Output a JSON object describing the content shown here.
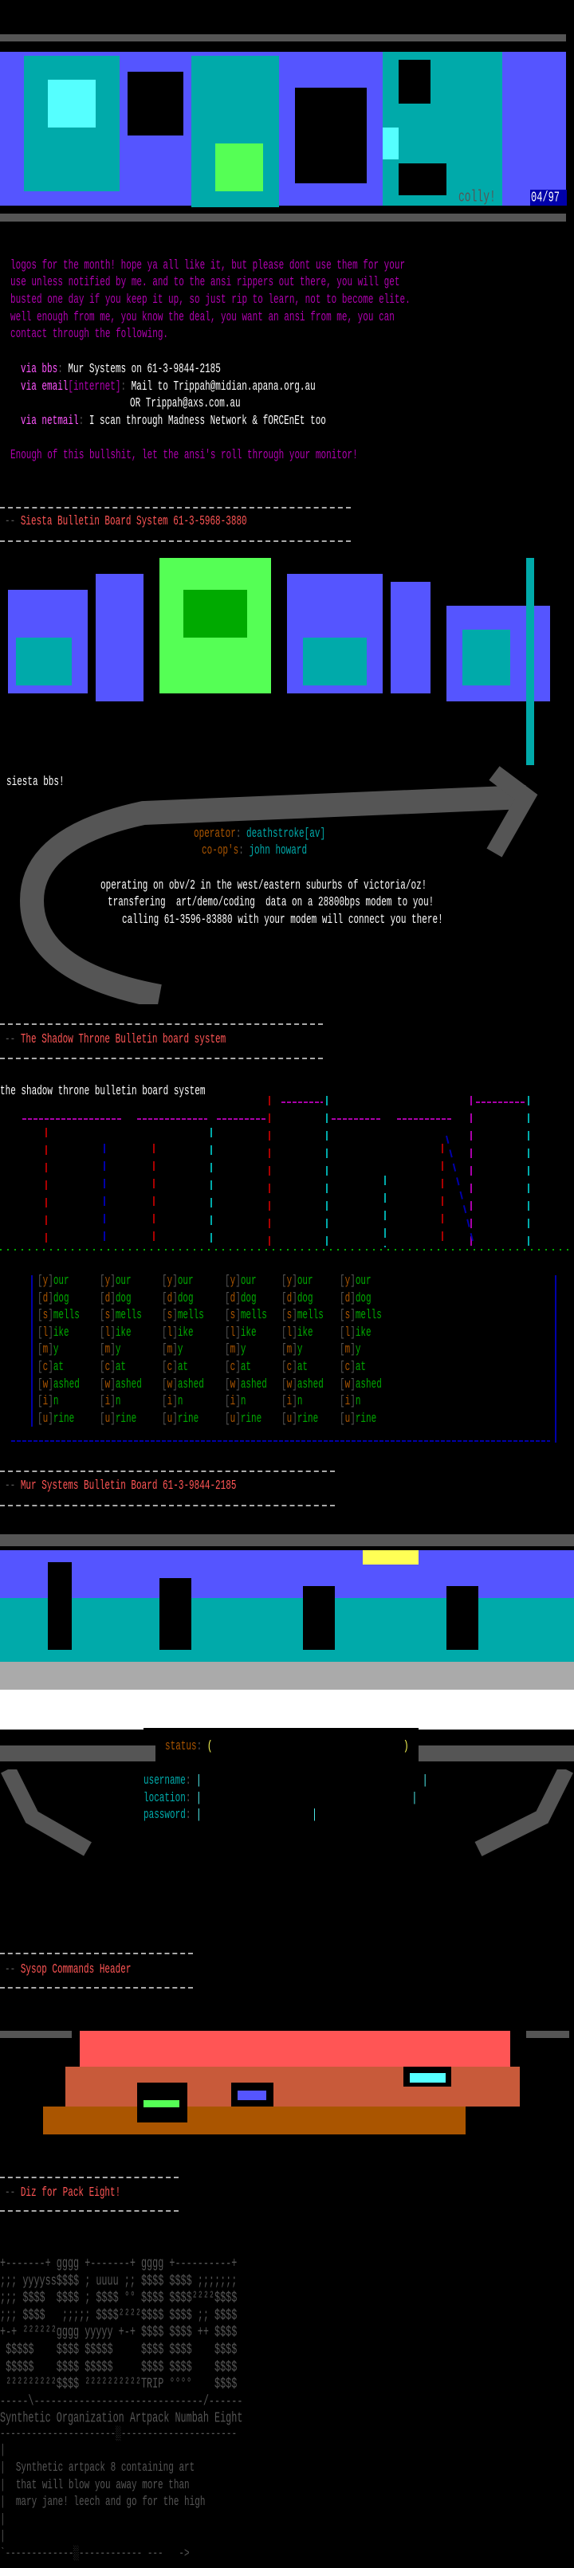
{
  "colors": {
    "magenta": "#b000b0",
    "bright_magenta": "#ff55ff",
    "red": "#ff5555",
    "brown": "#aa5500",
    "cyan": "#00aaaa",
    "bright_cyan": "#55ffff",
    "green": "#00aa00",
    "bright_green": "#55ff55",
    "blue": "#0000aa",
    "bright_blue": "#5555ff",
    "gray": "#aaaaaa",
    "dark_gray": "#555555",
    "yellow": "#ffff55"
  },
  "intro_logo": {
    "signature": "colly!",
    "date": "04/97"
  },
  "intro": {
    "paragraph": [
      "logos for the month! hope ya all like it, but please dont use them for your",
      "use unless notified by me. and to the ansi rippers out there, you will get",
      "busted one day if you keep it up, so just rip to learn, not to become elite.",
      "well enough from me, you know the deal, you want an ansi from me, you can",
      "contact through the following."
    ],
    "contacts": [
      {
        "label": "via bbs",
        "sep": ":",
        "value": "Mur Systems on 61-3-9844-2185"
      },
      {
        "label": "via email",
        "extra": "[internet]",
        "sep": ":",
        "value": "Mail to Trippah@midian.apana.org.au"
      },
      {
        "label": "",
        "value": "OR Trippah@axs.com.au"
      },
      {
        "label": "via netmail",
        "sep": ":",
        "value": "I scan through Madness Network & fORCEnEt too"
      }
    ],
    "outro": "Enough of this bullshit, let the ansi's roll through your monitor!"
  },
  "sections": [
    {
      "prefix": "--",
      "title": "Siesta Bulletin Board System 61-3-5968-3880"
    },
    {
      "prefix": "--",
      "title": "The Shadow Throne Bulletin board system"
    },
    {
      "prefix": "--",
      "title": "Mur Systems Bulletin Board 61-3-9844-2185"
    },
    {
      "prefix": "--",
      "title": "Sysop Commands Header"
    },
    {
      "prefix": "--",
      "title": "Diz for Pack Eight!"
    }
  ],
  "siesta": {
    "name": "siesta bbs!",
    "operator_label": "operator",
    "operator": "deathstroke[av]",
    "coops_label": "co-op's",
    "coops": "john howard",
    "info": [
      "operating on obv/2 in the west/eastern suburbs of victoria/oz!",
      "transfering  art/demo/coding  data on a 28800bps modem to you!",
      "calling 61-3596-83880 with your modem will connect you there!"
    ]
  },
  "shadow": {
    "title": "the shadow throne bulletin board system",
    "menu": [
      {
        "key": "y",
        "rest": "our"
      },
      {
        "key": "d",
        "rest": "dog"
      },
      {
        "key": "s",
        "rest": "mells"
      },
      {
        "key": "l",
        "rest": "ike"
      },
      {
        "key": "m",
        "rest": "y"
      },
      {
        "key": "c",
        "rest": "at"
      },
      {
        "key": "w",
        "rest": "ashed"
      },
      {
        "key": "i",
        "rest": "n"
      },
      {
        "key": "u",
        "rest": "rine"
      }
    ],
    "columns": 6
  },
  "mur": {
    "status_label": "status",
    "status_open": "(",
    "status_close": ")",
    "fields": [
      {
        "label": "username"
      },
      {
        "label": "location"
      },
      {
        "label": "password"
      }
    ]
  },
  "diz": {
    "art": [
      "+-------+ gggg +-------+ gggg +----------+",
      ";;; yyyyss$$$$ ; uuuu ;; $$$$ $$$$ ;;;;;;;",
      ";;; $$$$  $$$$ ; $$$$ °° $$$$ $$$$²²²²$$$$",
      ";;; $$$$   ;;;;; $$$$²²²²$$$$ $$$$ ;; $$$$",
      "+-+ ²²²²²²gggg yyyyy +-+ $$$$ $$$$ ++ $$$$",
      " $$$$$    $$$$ $$$$$     $$$$ $$$$    $$$$",
      " $$$$$    $$$$ $$$$$     $$$$ $$$$    $$$$",
      " ²²²²²²²²²$$$$ ²²²²²²²²²²TRIP °°°°    $$$$",
      "-----\\------------------------------/------"
    ],
    "title": "Synthetic Organization Artpack Numbah Eight",
    "rule": "----------------------░----------------------",
    "desc": [
      "Synthetic artpack 8 containing art",
      "that will blow you away more than",
      "mary jane! leech and go for the high"
    ],
    "bottom": "`-------------░------------ ---   ->"
  }
}
